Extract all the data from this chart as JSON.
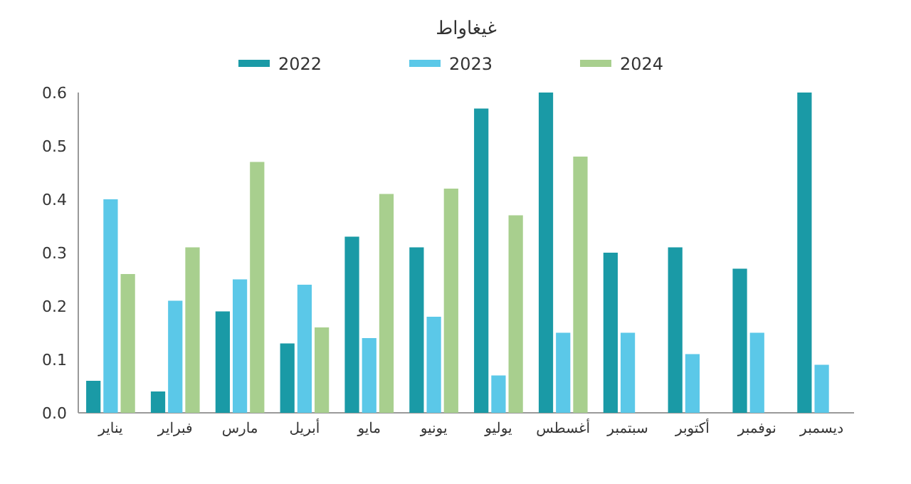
{
  "chart_data": {
    "type": "bar",
    "title": "غيغاواط",
    "categories": [
      "يناير",
      "فبراير",
      "مارس",
      "أبريل",
      "مايو",
      "يونيو",
      "يوليو",
      "أغسطس",
      "سبتمبر",
      "أكتوبر",
      "نوفمبر",
      "ديسمبر"
    ],
    "series": [
      {
        "name": "2022",
        "color": "#1a9aa6",
        "values": [
          0.06,
          0.04,
          0.19,
          0.13,
          0.33,
          0.31,
          0.57,
          0.6,
          0.3,
          0.31,
          0.27,
          0.6
        ]
      },
      {
        "name": "2023",
        "color": "#5bc8e8",
        "values": [
          0.4,
          0.21,
          0.25,
          0.24,
          0.14,
          0.18,
          0.07,
          0.15,
          0.15,
          0.11,
          0.15,
          0.09
        ]
      },
      {
        "name": "2024",
        "color": "#a8cf8e",
        "values": [
          0.26,
          0.31,
          0.47,
          0.16,
          0.41,
          0.42,
          0.37,
          0.48,
          null,
          null,
          null,
          null
        ]
      }
    ],
    "ylim": [
      0,
      0.6
    ],
    "yticks": [
      {
        "value": 0,
        "label": "0.0"
      },
      0.1,
      0.2,
      0.3,
      0.4,
      0.5,
      0.6
    ],
    "legend": "top",
    "grid": false
  }
}
